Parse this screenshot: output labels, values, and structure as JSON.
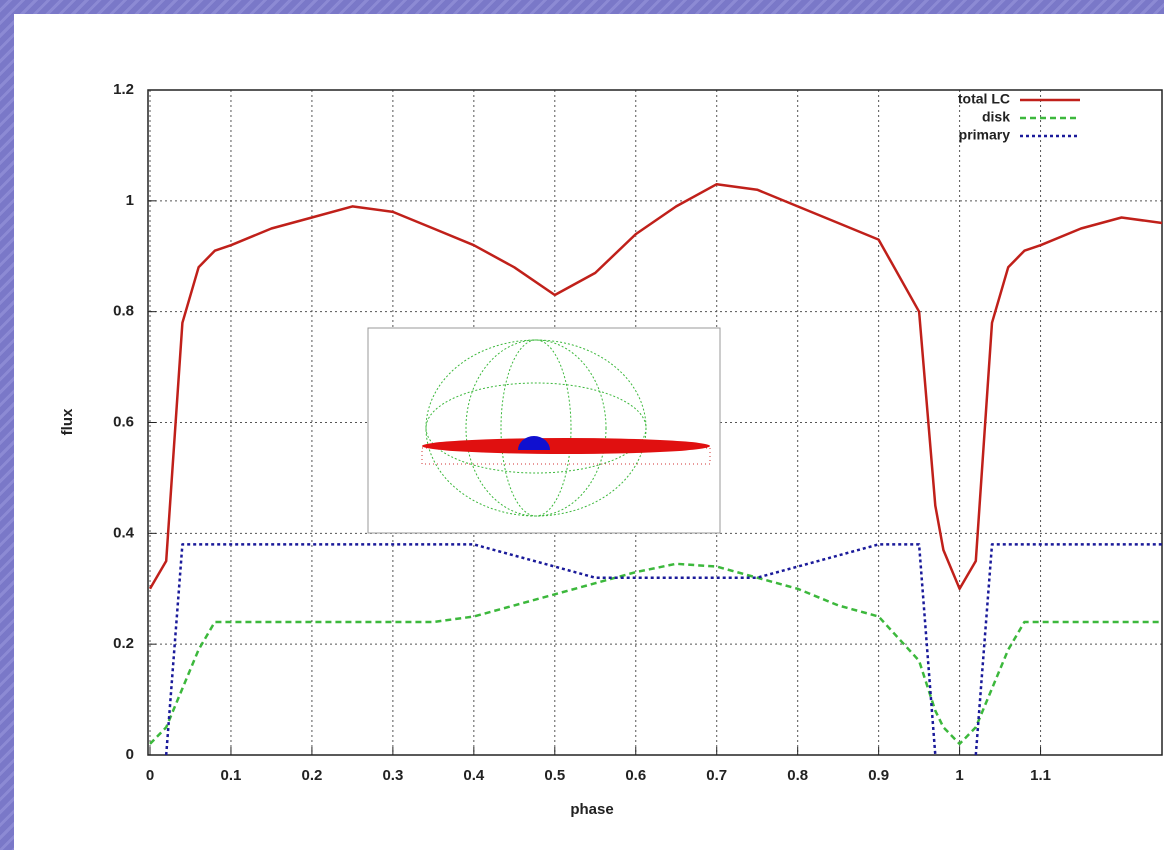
{
  "chart_data": {
    "type": "line",
    "xlabel": "phase",
    "ylabel": "flux",
    "x": [
      0,
      0.02,
      0.04,
      0.06,
      0.08,
      0.1,
      0.15,
      0.2,
      0.25,
      0.3,
      0.35,
      0.4,
      0.45,
      0.5,
      0.55,
      0.6,
      0.65,
      0.7,
      0.75,
      0.8,
      0.85,
      0.9,
      0.95,
      0.97,
      0.98,
      1.0,
      1.02,
      1.04,
      1.06,
      1.08,
      1.1,
      1.15,
      1.2,
      1.25
    ],
    "series": [
      {
        "name": "total LC",
        "color": "#c0201a",
        "dash": "solid",
        "values": [
          0.3,
          0.35,
          0.78,
          0.88,
          0.91,
          0.92,
          0.95,
          0.97,
          0.99,
          0.98,
          0.95,
          0.92,
          0.88,
          0.83,
          0.87,
          0.94,
          0.99,
          1.03,
          1.02,
          0.99,
          0.96,
          0.93,
          0.8,
          0.45,
          0.37,
          0.3,
          0.35,
          0.78,
          0.88,
          0.91,
          0.92,
          0.95,
          0.97,
          0.96
        ]
      },
      {
        "name": "disk",
        "color": "#3cb83c",
        "dash": "dashed",
        "values": [
          0.02,
          0.05,
          0.12,
          0.19,
          0.24,
          0.24,
          0.24,
          0.24,
          0.24,
          0.24,
          0.24,
          0.25,
          0.27,
          0.29,
          0.31,
          0.33,
          0.345,
          0.34,
          0.32,
          0.3,
          0.27,
          0.25,
          0.17,
          0.08,
          0.05,
          0.02,
          0.05,
          0.12,
          0.19,
          0.24,
          0.24,
          0.24,
          0.24,
          0.24
        ]
      },
      {
        "name": "primary",
        "color": "#1a1a9a",
        "dash": "dotted",
        "values": [
          null,
          0,
          0.38,
          0.38,
          0.38,
          0.38,
          0.38,
          0.38,
          0.38,
          0.38,
          0.38,
          0.38,
          0.36,
          0.34,
          0.32,
          0.32,
          0.32,
          0.32,
          0.32,
          0.34,
          0.36,
          0.38,
          0.38,
          0,
          null,
          null,
          0,
          0.38,
          0.38,
          0.38,
          0.38,
          0.38,
          0.38,
          0.38
        ]
      }
    ],
    "xlim": [
      0,
      1.25
    ],
    "xticks": [
      0,
      0.1,
      0.2,
      0.3,
      0.4,
      0.5,
      0.6,
      0.7,
      0.8,
      0.9,
      1,
      1.1
    ],
    "ylim": [
      0,
      1.2
    ],
    "yticks": [
      0,
      0.2,
      0.4,
      0.6,
      0.8,
      1,
      1.2
    ],
    "grid": true,
    "legend": "upper right"
  }
}
